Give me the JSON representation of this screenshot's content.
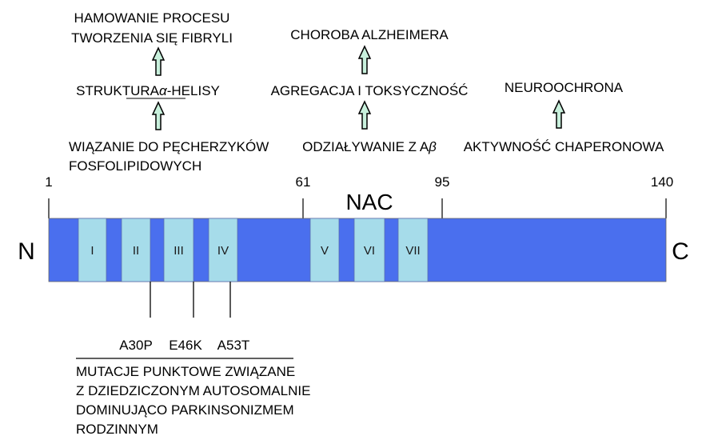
{
  "protein": {
    "start_label": "1",
    "end_label": "140",
    "n_terminus": "N",
    "c_terminus": "C",
    "nac_label": "NAC",
    "ticks": [
      "61",
      "95"
    ]
  },
  "colors": {
    "backbone": "#4a6fee",
    "repeat": "#a6dcea",
    "arrow_fill": "#c8f0dc",
    "line": "#000000"
  },
  "repeats": [
    "I",
    "II",
    "III",
    "IV",
    "V",
    "VI",
    "VII"
  ],
  "functions": {
    "left": {
      "top_line1": "HAMOWANIE PROCESU",
      "top_line2": "TWORZENIA SIĘ FIBRYLI",
      "middle_prefix": "STRUKTURA",
      "middle_greek": "α",
      "middle_suffix": "-HELISY",
      "bottom_line1": "WIĄZANIE DO PĘCHERZYKÓW",
      "bottom_line2": "FOSFOLIPIDOWYCH"
    },
    "center": {
      "top": "CHOROBA ALZHEIMERA",
      "middle": "AGREGACJA I TOKSYCZNOŚĆ",
      "bottom_prefix": "ODZIAŁYWANIE Z A",
      "bottom_greek": "β"
    },
    "right": {
      "top": "NEUROOCHRONA",
      "bottom": "AKTYWNOŚĆ CHAPERONOWA"
    }
  },
  "mutations": {
    "labels": [
      "A30P",
      "E46K",
      "A53T"
    ],
    "caption": [
      "MUTACJE PUNKTOWE ZWIĄZANE",
      "Z DZIEDZICZONYM AUTOSOMALNIE",
      "DOMINUJĄCO PARKINSONIZMEM",
      "RODZINNYM"
    ]
  }
}
